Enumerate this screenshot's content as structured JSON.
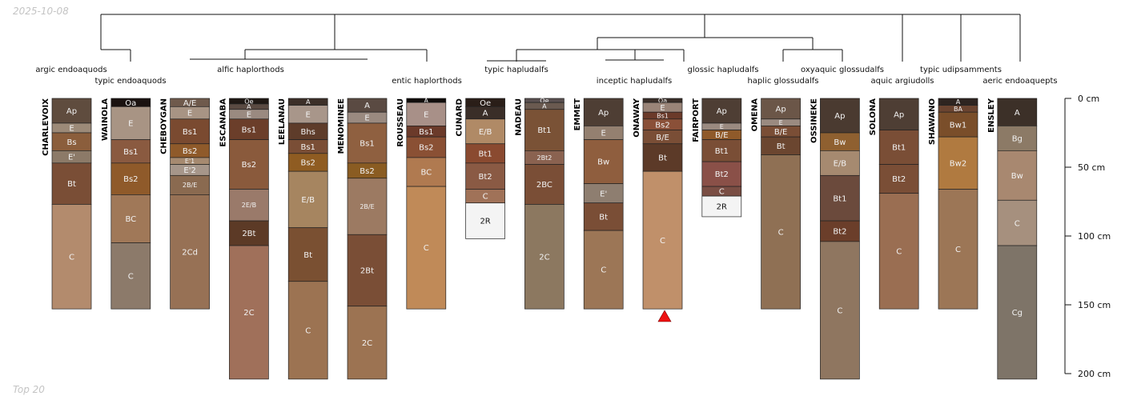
{
  "header": {
    "date": "2025-10-08"
  },
  "footer": {
    "label": "Top 20"
  },
  "taxa": [
    "argic endoaquods",
    "typic endoaquods",
    "alfic haplorthods",
    "entic haplorthods",
    "typic hapludalfs",
    "inceptic hapludalfs",
    "glossic hapludalfs",
    "haplic glossudalfs",
    "oxyaquic glossudalfs",
    "aquic argiudolls",
    "typic udipsamments",
    "aeric endoaquepts"
  ],
  "depth_axis": {
    "ticks": [
      {
        "v": 0,
        "label": "0 cm"
      },
      {
        "v": 50,
        "label": "50 cm"
      },
      {
        "v": 100,
        "label": "100 cm"
      },
      {
        "v": 150,
        "label": "150 cm"
      },
      {
        "v": 200,
        "label": "200 cm"
      }
    ]
  },
  "profiles": [
    {
      "name": "CHARLEVOIX",
      "bottom": 153,
      "horizons": [
        {
          "n": "Ap",
          "t": 0,
          "b": 18,
          "c": "#5f4c3e"
        },
        {
          "n": "E",
          "t": 18,
          "b": 25,
          "c": "#9c8a78"
        },
        {
          "n": "Bs",
          "t": 25,
          "b": 38,
          "c": "#8b5e3c"
        },
        {
          "n": "E'",
          "t": 38,
          "b": 47,
          "c": "#8c7a68"
        },
        {
          "n": "Bt",
          "t": 47,
          "b": 77,
          "c": "#7a4e36"
        },
        {
          "n": "C",
          "t": 77,
          "b": 153,
          "c": "#b38b6d"
        }
      ]
    },
    {
      "name": "WAINOLA",
      "bottom": 153,
      "horizons": [
        {
          "n": "Oa",
          "t": 0,
          "b": 6,
          "c": "#1a1210"
        },
        {
          "n": "E",
          "t": 6,
          "b": 30,
          "c": "#a89484"
        },
        {
          "n": "Bs1",
          "t": 30,
          "b": 47,
          "c": "#8a5a40"
        },
        {
          "n": "Bs2",
          "t": 47,
          "b": 70,
          "c": "#8f5a2a"
        },
        {
          "n": "BC",
          "t": 70,
          "b": 105,
          "c": "#a07858"
        },
        {
          "n": "C",
          "t": 105,
          "b": 153,
          "c": "#8c7a6a"
        }
      ]
    },
    {
      "name": "CHEBOYGAN",
      "bottom": 153,
      "horizons": [
        {
          "n": "A/E",
          "t": 0,
          "b": 6,
          "c": "#6f5a4c"
        },
        {
          "n": "E",
          "t": 6,
          "b": 15,
          "c": "#a89484"
        },
        {
          "n": "Bs1",
          "t": 15,
          "b": 33,
          "c": "#7a4a30"
        },
        {
          "n": "Bs2",
          "t": 33,
          "b": 43,
          "c": "#8f5a2a"
        },
        {
          "n": "E'1",
          "t": 43,
          "b": 48,
          "c": "#a68a70"
        },
        {
          "n": "E'2",
          "t": 48,
          "b": 56,
          "c": "#a6968a"
        },
        {
          "n": "2B/E",
          "t": 56,
          "b": 70,
          "c": "#8a6a50"
        },
        {
          "n": "2Cd",
          "t": 70,
          "b": 153,
          "c": "#977155"
        }
      ]
    },
    {
      "name": "ESCANABA",
      "bottom": 204,
      "horizons": [
        {
          "n": "Oe",
          "t": 0,
          "b": 4,
          "c": "#1f1814"
        },
        {
          "n": "A",
          "t": 4,
          "b": 8,
          "c": "#5a4a42"
        },
        {
          "n": "E",
          "t": 8,
          "b": 15,
          "c": "#9a8a80"
        },
        {
          "n": "Bs1",
          "t": 15,
          "b": 30,
          "c": "#6b3e2a"
        },
        {
          "n": "Bs2",
          "t": 30,
          "b": 66,
          "c": "#8a5a3c"
        },
        {
          "n": "2E/B",
          "t": 66,
          "b": 89,
          "c": "#9a7a6a"
        },
        {
          "n": "2Bt",
          "t": 89,
          "b": 107,
          "c": "#5c3a26"
        },
        {
          "n": "2C",
          "t": 107,
          "b": 204,
          "c": "#a0705a"
        }
      ]
    },
    {
      "name": "LEELANAU",
      "bottom": 204,
      "horizons": [
        {
          "n": "A",
          "t": 0,
          "b": 5,
          "c": "#3c2f28"
        },
        {
          "n": "E",
          "t": 5,
          "b": 18,
          "c": "#a8968a"
        },
        {
          "n": "Bhs",
          "t": 18,
          "b": 30,
          "c": "#5e3c2a"
        },
        {
          "n": "Bs1",
          "t": 30,
          "b": 40,
          "c": "#7a4e36"
        },
        {
          "n": "Bs2",
          "t": 40,
          "b": 53,
          "c": "#8f5c22"
        },
        {
          "n": "E/B",
          "t": 53,
          "b": 94,
          "c": "#a68560"
        },
        {
          "n": "Bt",
          "t": 94,
          "b": 133,
          "c": "#7a5032"
        },
        {
          "n": "C",
          "t": 133,
          "b": 204,
          "c": "#9c7352"
        }
      ]
    },
    {
      "name": "MENOMINEE",
      "bottom": 204,
      "horizons": [
        {
          "n": "A",
          "t": 0,
          "b": 10,
          "c": "#5a4a42"
        },
        {
          "n": "E",
          "t": 10,
          "b": 18,
          "c": "#9a8a80"
        },
        {
          "n": "Bs1",
          "t": 18,
          "b": 47,
          "c": "#8f6040"
        },
        {
          "n": "Bs2",
          "t": 47,
          "b": 58,
          "c": "#8a5c22"
        },
        {
          "n": "2B/E",
          "t": 58,
          "b": 99,
          "c": "#9c7a62"
        },
        {
          "n": "2Bt",
          "t": 99,
          "b": 151,
          "c": "#7a4e36"
        },
        {
          "n": "2C",
          "t": 151,
          "b": 204,
          "c": "#9c7352"
        }
      ]
    },
    {
      "name": "ROUSSEAU",
      "bottom": 153,
      "horizons": [
        {
          "n": "A",
          "t": 0,
          "b": 3,
          "c": "#100c0a"
        },
        {
          "n": "E",
          "t": 3,
          "b": 20,
          "c": "#a89088"
        },
        {
          "n": "Bs1",
          "t": 20,
          "b": 28,
          "c": "#6b3a2a"
        },
        {
          "n": "Bs2",
          "t": 28,
          "b": 43,
          "c": "#8a5034"
        },
        {
          "n": "BC",
          "t": 43,
          "b": 64,
          "c": "#b07a50"
        },
        {
          "n": "C",
          "t": 64,
          "b": 153,
          "c": "#c08a58"
        }
      ]
    },
    {
      "name": "CUNARD",
      "bottom": 102,
      "horizons": [
        {
          "n": "Oe",
          "t": 0,
          "b": 6,
          "c": "#2a1e18"
        },
        {
          "n": "A",
          "t": 6,
          "b": 15,
          "c": "#3a2e28"
        },
        {
          "n": "E/B",
          "t": 15,
          "b": 33,
          "c": "#b08a66"
        },
        {
          "n": "Bt1",
          "t": 33,
          "b": 47,
          "c": "#8a4a30"
        },
        {
          "n": "Bt2",
          "t": 47,
          "b": 66,
          "c": "#8a5a44"
        },
        {
          "n": "C",
          "t": 66,
          "b": 76,
          "c": "#a07258"
        },
        {
          "n": "2R",
          "t": 76,
          "b": 102,
          "c": "#f4f4f4"
        }
      ]
    },
    {
      "name": "NADEAU",
      "bottom": 153,
      "horizons": [
        {
          "n": "Oe",
          "t": 0,
          "b": 3,
          "c": "#5a5050"
        },
        {
          "n": "A",
          "t": 3,
          "b": 8,
          "c": "#6a5a50"
        },
        {
          "n": "Bt1",
          "t": 8,
          "b": 38,
          "c": "#7a5236"
        },
        {
          "n": "2Bt2",
          "t": 38,
          "b": 48,
          "c": "#8a6250"
        },
        {
          "n": "2BC",
          "t": 48,
          "b": 77,
          "c": "#7a4e36"
        },
        {
          "n": "2C",
          "t": 77,
          "b": 153,
          "c": "#8c7860"
        }
      ]
    },
    {
      "name": "EMMET",
      "bottom": 153,
      "horizons": [
        {
          "n": "Ap",
          "t": 0,
          "b": 20,
          "c": "#4e3e34"
        },
        {
          "n": "E",
          "t": 20,
          "b": 30,
          "c": "#948070"
        },
        {
          "n": "Bw",
          "t": 30,
          "b": 62,
          "c": "#8f5e3e"
        },
        {
          "n": "E'",
          "t": 62,
          "b": 76,
          "c": "#8e7e70"
        },
        {
          "n": "Bt",
          "t": 76,
          "b": 96,
          "c": "#7a4e36"
        },
        {
          "n": "C",
          "t": 96,
          "b": 153,
          "c": "#9c7656"
        }
      ]
    },
    {
      "name": "ONAWAY",
      "bottom": 153,
      "horizons": [
        {
          "n": "Oa",
          "t": 0,
          "b": 3,
          "c": "#3a2e28"
        },
        {
          "n": "E",
          "t": 3,
          "b": 10,
          "c": "#9a8478"
        },
        {
          "n": "Bs1",
          "t": 10,
          "b": 15,
          "c": "#6b3a2a"
        },
        {
          "n": "Bs2",
          "t": 15,
          "b": 23,
          "c": "#8a5038"
        },
        {
          "n": "B/E",
          "t": 23,
          "b": 33,
          "c": "#7a4e36"
        },
        {
          "n": "Bt",
          "t": 33,
          "b": 53,
          "c": "#5c3a28"
        },
        {
          "n": "C",
          "t": 53,
          "b": 153,
          "c": "#c0906a"
        }
      ]
    },
    {
      "name": "FAIRPORT",
      "bottom": 86,
      "horizons": [
        {
          "n": "Ap",
          "t": 0,
          "b": 18,
          "c": "#4e3e34"
        },
        {
          "n": "E",
          "t": 18,
          "b": 23,
          "c": "#9a8a80"
        },
        {
          "n": "B/E",
          "t": 23,
          "b": 30,
          "c": "#8f5a2a"
        },
        {
          "n": "Bt1",
          "t": 30,
          "b": 46,
          "c": "#7a4e36"
        },
        {
          "n": "Bt2",
          "t": 46,
          "b": 64,
          "c": "#8a5048"
        },
        {
          "n": "C",
          "t": 64,
          "b": 71,
          "c": "#7a4e44"
        },
        {
          "n": "2R",
          "t": 71,
          "b": 86,
          "c": "#f4f4f4"
        }
      ]
    },
    {
      "name": "OMENA",
      "bottom": 153,
      "horizons": [
        {
          "n": "Ap",
          "t": 0,
          "b": 15,
          "c": "#6b5648"
        },
        {
          "n": "E",
          "t": 15,
          "b": 20,
          "c": "#9a8a80"
        },
        {
          "n": "B/E",
          "t": 20,
          "b": 28,
          "c": "#7a4e36"
        },
        {
          "n": "Bt",
          "t": 28,
          "b": 41,
          "c": "#6b4630"
        },
        {
          "n": "C",
          "t": 41,
          "b": 153,
          "c": "#8f7054"
        }
      ]
    },
    {
      "name": "OSSINEKE",
      "bottom": 204,
      "horizons": [
        {
          "n": "Ap",
          "t": 0,
          "b": 25,
          "c": "#4a3a30"
        },
        {
          "n": "Bw",
          "t": 25,
          "b": 38,
          "c": "#8f6030"
        },
        {
          "n": "E/B",
          "t": 38,
          "b": 56,
          "c": "#a68a70"
        },
        {
          "n": "Bt1",
          "t": 56,
          "b": 89,
          "c": "#6b4a3c"
        },
        {
          "n": "Bt2",
          "t": 89,
          "b": 104,
          "c": "#6b3e2a"
        },
        {
          "n": "C",
          "t": 104,
          "b": 204,
          "c": "#8f7660"
        }
      ]
    },
    {
      "name": "SOLONA",
      "bottom": 153,
      "horizons": [
        {
          "n": "Ap",
          "t": 0,
          "b": 23,
          "c": "#4e3e34"
        },
        {
          "n": "Bt1",
          "t": 23,
          "b": 48,
          "c": "#7a4e36"
        },
        {
          "n": "Bt2",
          "t": 48,
          "b": 69,
          "c": "#7a4e36"
        },
        {
          "n": "C",
          "t": 69,
          "b": 153,
          "c": "#9a6e52"
        }
      ]
    },
    {
      "name": "SHAWANO",
      "bottom": 153,
      "horizons": [
        {
          "n": "A",
          "t": 0,
          "b": 5,
          "c": "#2e2420"
        },
        {
          "n": "BA",
          "t": 5,
          "b": 10,
          "c": "#6b4430"
        },
        {
          "n": "Bw1",
          "t": 10,
          "b": 28,
          "c": "#7a4e2a"
        },
        {
          "n": "Bw2",
          "t": 28,
          "b": 66,
          "c": "#b07a40"
        },
        {
          "n": "C",
          "t": 66,
          "b": 153,
          "c": "#9c7656"
        }
      ]
    },
    {
      "name": "ENSLEY",
      "bottom": 204,
      "horizons": [
        {
          "n": "A",
          "t": 0,
          "b": 20,
          "c": "#3c3028"
        },
        {
          "n": "Bg",
          "t": 20,
          "b": 38,
          "c": "#8c7a66"
        },
        {
          "n": "Bw",
          "t": 38,
          "b": 74,
          "c": "#a88870"
        },
        {
          "n": "C",
          "t": 74,
          "b": 107,
          "c": "#a6907e"
        },
        {
          "n": "Cg",
          "t": 107,
          "b": 204,
          "c": "#7e7468"
        }
      ]
    }
  ]
}
